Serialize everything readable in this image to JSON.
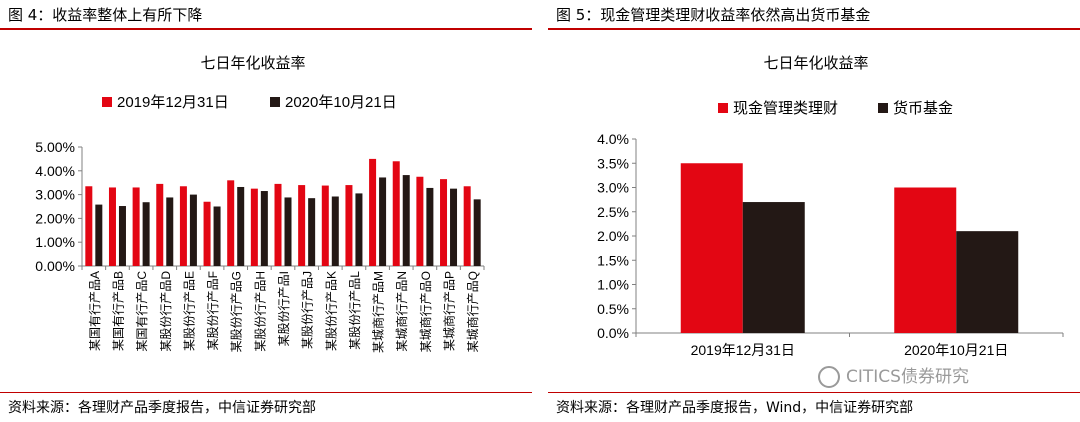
{
  "left_panel": {
    "figure_title": "图 4：收益率整体上有所下降",
    "source": "资料来源：各理财产品季度报告，中信证券研究部"
  },
  "right_panel": {
    "figure_title": "图 5：现金管理类理财收益率依然高出货币基金",
    "source": "资料来源：各理财产品季度报告，Wind，中信证券研究部",
    "watermark": "CITICS债券研究"
  },
  "colors": {
    "series_a": "#e30613",
    "series_b": "#231815",
    "accent": "#c00000",
    "axis": "#808080"
  },
  "chart_data": [
    {
      "type": "bar",
      "title": "七日年化收益率",
      "categories": [
        "某国有行产品A",
        "某国有行产品B",
        "某国有行产品C",
        "某股份行产品D",
        "某股份行产品E",
        "某股份行产品F",
        "某股份行产品G",
        "某股份行产品H",
        "某股份行产品I",
        "某股份行产品J",
        "某股份行产品K",
        "某股份行产品L",
        "某城商行产品M",
        "某城商行产品N",
        "某城商行产品O",
        "某城商行产品P",
        "某城商行产品Q"
      ],
      "series": [
        {
          "name": "2019年12月31日",
          "values": [
            3.35,
            3.3,
            3.3,
            3.45,
            3.35,
            2.7,
            3.6,
            3.25,
            3.45,
            3.4,
            3.38,
            3.4,
            4.5,
            4.4,
            3.75,
            3.65,
            3.35
          ]
        },
        {
          "name": "2020年10月21日",
          "values": [
            2.58,
            2.52,
            2.68,
            2.88,
            3.0,
            2.5,
            3.32,
            3.15,
            2.88,
            2.85,
            2.92,
            3.05,
            3.72,
            3.82,
            3.28,
            3.25,
            2.8
          ]
        }
      ],
      "yticks": [
        "0.00%",
        "1.00%",
        "2.00%",
        "3.00%",
        "4.00%",
        "5.00%"
      ],
      "ylim": [
        0,
        5
      ],
      "legend_position": "top",
      "grid": false
    },
    {
      "type": "bar",
      "title": "七日年化收益率",
      "categories": [
        "2019年12月31日",
        "2020年10月21日"
      ],
      "series": [
        {
          "name": "现金管理类理财",
          "values": [
            3.5,
            3.0
          ]
        },
        {
          "name": "货币基金",
          "values": [
            2.7,
            2.1
          ]
        }
      ],
      "yticks": [
        "0.0%",
        "0.5%",
        "1.0%",
        "1.5%",
        "2.0%",
        "2.5%",
        "3.0%",
        "3.5%",
        "4.0%"
      ],
      "ylim": [
        0,
        4
      ],
      "legend_position": "top",
      "grid": false
    }
  ]
}
